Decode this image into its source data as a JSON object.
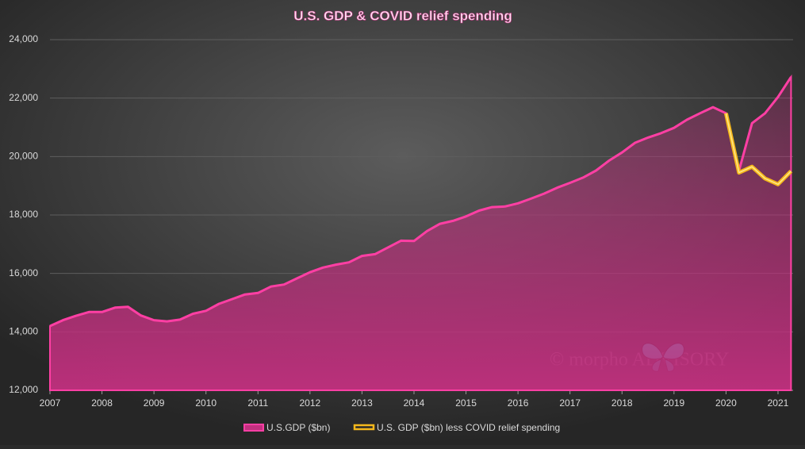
{
  "chart_data": {
    "type": "line",
    "title": "U.S. GDP & COVID relief spending",
    "watermark": "© morpho ADVISORY",
    "x": [
      2007,
      2007.25,
      2007.5,
      2007.75,
      2008,
      2008.25,
      2008.5,
      2008.75,
      2009,
      2009.25,
      2009.5,
      2009.75,
      2010,
      2010.25,
      2010.5,
      2010.75,
      2011,
      2011.25,
      2011.5,
      2011.75,
      2012,
      2012.25,
      2012.5,
      2012.75,
      2013,
      2013.25,
      2013.5,
      2013.75,
      2014,
      2014.25,
      2014.5,
      2014.75,
      2015,
      2015.25,
      2015.5,
      2015.75,
      2016,
      2016.25,
      2016.5,
      2016.75,
      2017,
      2017.25,
      2017.5,
      2017.75,
      2018,
      2018.25,
      2018.5,
      2018.75,
      2019,
      2019.25,
      2019.5,
      2019.75,
      2020,
      2020.25,
      2020.5,
      2020.75,
      2021,
      2021.25
    ],
    "series": [
      {
        "name": "U.S.GDP ($bn)",
        "color": "#ff3fa4",
        "fill": true,
        "values": [
          14200,
          14400,
          14550,
          14680,
          14680,
          14830,
          14860,
          14560,
          14400,
          14360,
          14420,
          14620,
          14720,
          14960,
          15120,
          15280,
          15330,
          15550,
          15620,
          15830,
          16040,
          16200,
          16300,
          16380,
          16600,
          16660,
          16890,
          17120,
          17110,
          17450,
          17700,
          17800,
          17950,
          18150,
          18270,
          18290,
          18400,
          18560,
          18730,
          18930,
          19100,
          19280,
          19520,
          19860,
          20140,
          20470,
          20650,
          20800,
          20980,
          21260,
          21480,
          21690,
          21480,
          19520,
          21140,
          21480,
          22040,
          22720
        ]
      },
      {
        "name": "U.S. GDP ($bn) less COVID relief spending",
        "color": "#f5b81c",
        "fill": false,
        "values": [
          null,
          null,
          null,
          null,
          null,
          null,
          null,
          null,
          null,
          null,
          null,
          null,
          null,
          null,
          null,
          null,
          null,
          null,
          null,
          null,
          null,
          null,
          null,
          null,
          null,
          null,
          null,
          null,
          null,
          null,
          null,
          null,
          null,
          null,
          null,
          null,
          null,
          null,
          null,
          null,
          null,
          null,
          null,
          null,
          null,
          null,
          null,
          null,
          null,
          null,
          null,
          null,
          21480,
          19450,
          19650,
          19250,
          19050,
          19500
        ]
      }
    ],
    "xlim": [
      2007,
      2021.25
    ],
    "xticks": [
      2007,
      2008,
      2009,
      2010,
      2011,
      2012,
      2013,
      2014,
      2015,
      2016,
      2017,
      2018,
      2019,
      2020,
      2021
    ],
    "ylim": [
      12000,
      24000
    ],
    "yticks": [
      {
        "value": 12000,
        "label": "12,000"
      },
      {
        "value": 14000,
        "label": "14,000"
      },
      {
        "value": 16000,
        "label": "16,000"
      },
      {
        "value": 18000,
        "label": "18,000"
      },
      {
        "value": 20000,
        "label": "20,000"
      },
      {
        "value": 22000,
        "label": "22,000"
      },
      {
        "value": 24000,
        "label": "24,000"
      }
    ],
    "grid": true,
    "legend": "bottom"
  }
}
